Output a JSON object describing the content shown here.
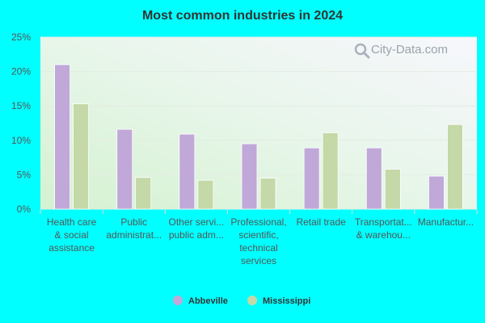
{
  "chart_data": {
    "type": "bar",
    "title": "Most common industries in 2024",
    "categories": [
      [
        "Health care",
        "& social",
        "assistance"
      ],
      [
        "Public",
        "administrat..."
      ],
      [
        "Other servi...",
        "public adm..."
      ],
      [
        "Professional,",
        "scientific,",
        "technical",
        "services"
      ],
      [
        "Retail trade"
      ],
      [
        "Transportat...",
        "& warehou..."
      ],
      [
        "Manufactur..."
      ]
    ],
    "series": [
      {
        "name": "Abbeville",
        "color": "#c0a8d8",
        "values": [
          21.0,
          11.6,
          10.9,
          9.5,
          8.9,
          8.9,
          4.8
        ]
      },
      {
        "name": "Mississippi",
        "color": "#c4d8a8",
        "values": [
          15.3,
          4.6,
          4.2,
          4.5,
          11.1,
          5.8,
          12.3
        ]
      }
    ],
    "y_ticks": [
      "0%",
      "5%",
      "10%",
      "15%",
      "20%",
      "25%"
    ],
    "ylim": [
      0,
      25
    ],
    "grid": true,
    "legend_position": "bottom"
  },
  "watermark": "City-Data.com"
}
